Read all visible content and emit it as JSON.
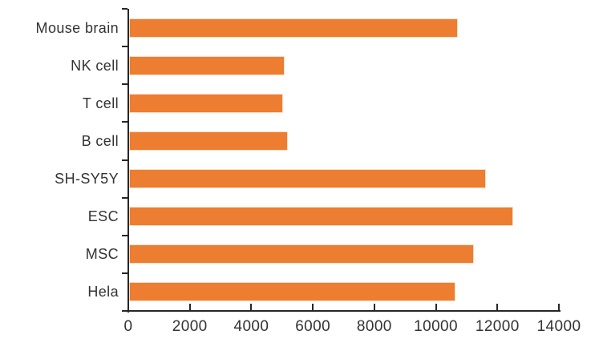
{
  "chart_data": {
    "type": "bar",
    "orientation": "horizontal",
    "title": "",
    "xlabel": "",
    "ylabel": "",
    "categories": [
      "Mouse brain",
      "NK cell",
      "T cell",
      "B cell",
      "SH-SY5Y",
      "ESC",
      "MSC",
      "Hela"
    ],
    "values": [
      10700,
      5050,
      5000,
      5150,
      11600,
      12500,
      11200,
      10600
    ],
    "xlim": [
      0,
      14000
    ],
    "x_ticks": [
      0,
      2000,
      4000,
      6000,
      8000,
      10000,
      12000,
      14000
    ],
    "grid": false,
    "legend": false,
    "colors": {
      "bar_fill": "#ED7D31",
      "bar_border": "#FAE0CC",
      "axis": "#262626",
      "text": "#333333"
    }
  }
}
